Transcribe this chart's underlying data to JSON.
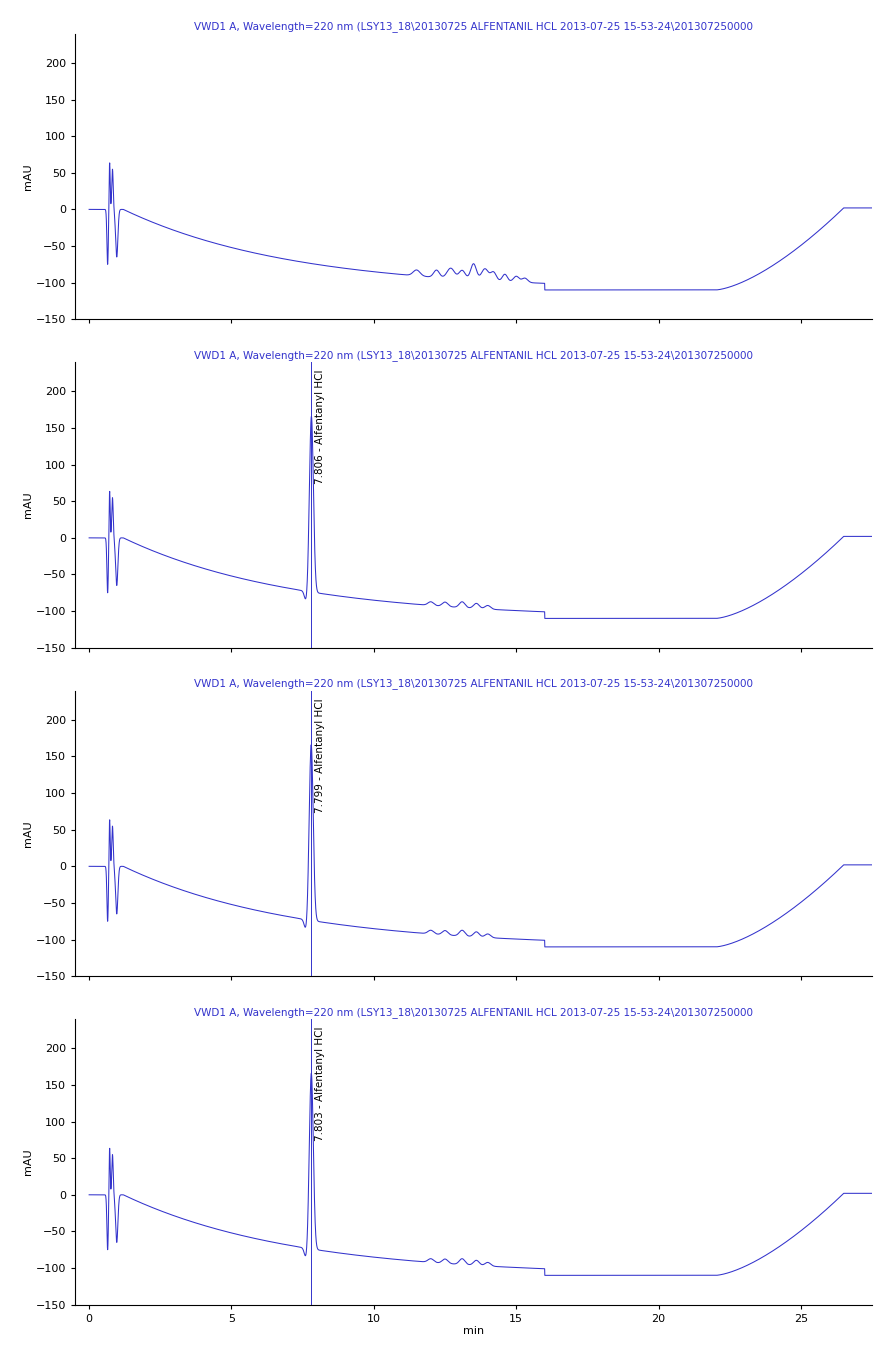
{
  "title": "VWD1 A, Wavelength=220 nm (LSY13_18\\20130725 ALFENTANIL HCL 2013-07-25 15-53-24\\201307250000",
  "title_color": "#3333cc",
  "line_color": "#3333cc",
  "bg_color": "#ffffff",
  "xlabel": "min",
  "ylabel": "mAU",
  "xlim": [
    -0.5,
    27.5
  ],
  "ylim": [
    -150,
    240
  ],
  "yticks": [
    -150,
    -100,
    -50,
    0,
    50,
    100,
    150,
    200
  ],
  "xticks": [
    0,
    5,
    10,
    15,
    20,
    25
  ],
  "panels": [
    {
      "label": null,
      "peak_time": null
    },
    {
      "label": "7.806 - Alfentanyl HCl",
      "peak_time": 7.806
    },
    {
      "label": "7.799 - Alfentanyl HCl",
      "peak_time": 7.799
    },
    {
      "label": "7.803 - Alfentanyl HCl",
      "peak_time": 7.803
    }
  ]
}
